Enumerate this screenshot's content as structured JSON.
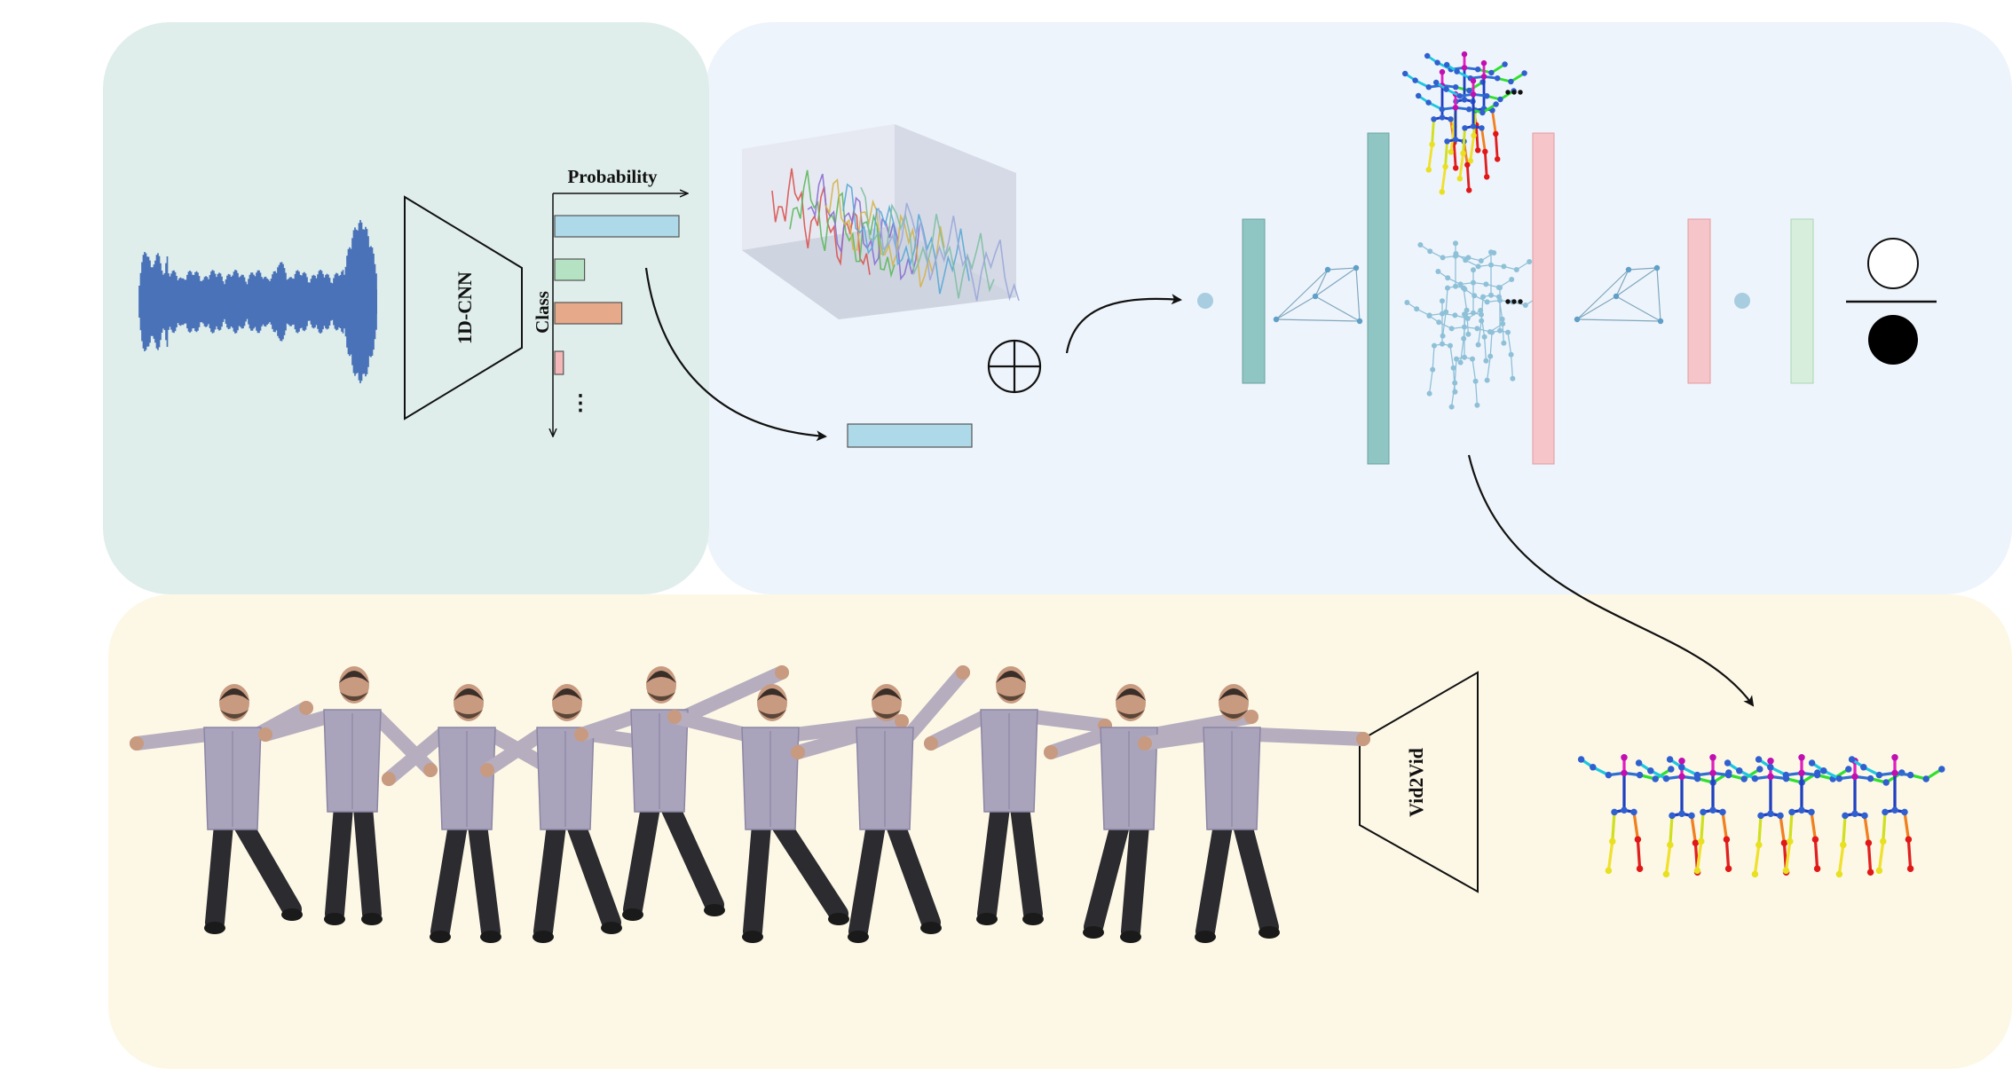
{
  "panels": {
    "audio_panel_color": "#dfeeeb",
    "gan_panel_color": "#eef4fb",
    "render_panel_color": "#fdf8e6"
  },
  "encoder": {
    "label": "1D-CNN",
    "waveform_color": "#4a72b8"
  },
  "class_chart": {
    "x_axis_label": "Probability",
    "y_axis_label": "Class",
    "more_marker": "⋮",
    "bars": [
      {
        "value": 1.0,
        "color": "#aed9e8"
      },
      {
        "value": 0.24,
        "color": "#b6e2c4"
      },
      {
        "value": 0.54,
        "color": "#e6a98a"
      },
      {
        "value": 0.07,
        "color": "#f4b6b6"
      }
    ]
  },
  "noise": {
    "curve_colors": [
      "#d9534f",
      "#5cb85c",
      "#8a6fd1",
      "#d4b44a",
      "#5aa9d6",
      "#7fbfa3",
      "#9aa8d8"
    ]
  },
  "generator": {
    "layer_color": "#8fc5c3",
    "concat_symbol": "⊕",
    "skeleton_ellipsis": "•••"
  },
  "discriminator": {
    "layer_color": "#f6c5c9",
    "output_color": "#d6eedb",
    "skeleton_ellipsis": "•••",
    "real_fake_icons": [
      "real-circle-icon",
      "fake-circle-icon"
    ]
  },
  "renderer": {
    "label": "Vid2Vid"
  }
}
